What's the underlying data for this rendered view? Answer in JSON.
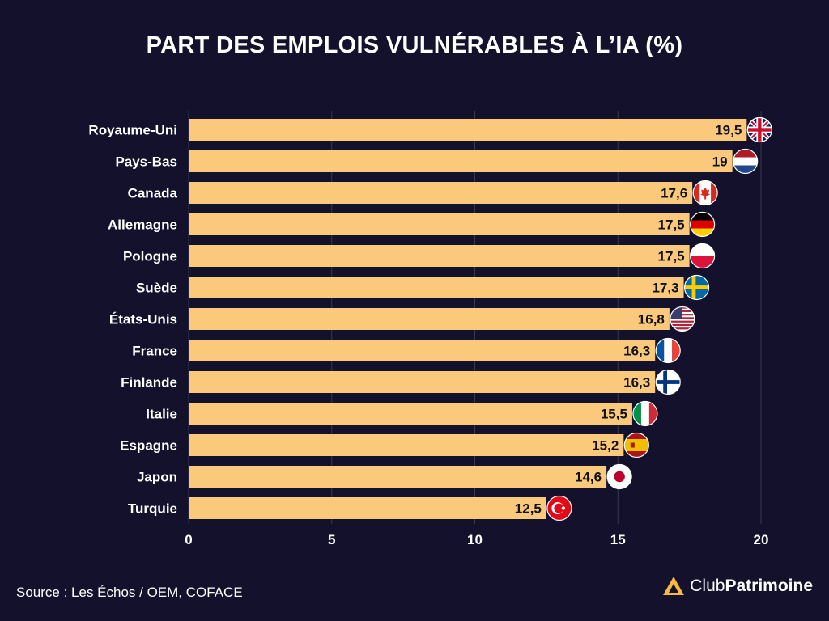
{
  "chart_data": {
    "type": "bar",
    "orientation": "horizontal",
    "title": "PART DES EMPLOIS VULNÉRABLES À L’IA (%)",
    "categories": [
      "Royaume-Uni",
      "Pays-Bas",
      "Canada",
      "Allemagne",
      "Pologne",
      "Suède",
      "États-Unis",
      "France",
      "Finlande",
      "Italie",
      "Espagne",
      "Japon",
      "Turquie"
    ],
    "values": [
      19.5,
      19,
      17.6,
      17.5,
      17.5,
      17.3,
      16.8,
      16.3,
      16.3,
      15.5,
      15.2,
      14.6,
      12.5
    ],
    "value_labels": [
      "19,5",
      "19",
      "17,6",
      "17,5",
      "17,5",
      "17,3",
      "16,8",
      "16,3",
      "16,3",
      "15,5",
      "15,2",
      "14,6",
      "12,5"
    ],
    "flags": [
      "uk-flag-icon",
      "netherlands-flag-icon",
      "canada-flag-icon",
      "germany-flag-icon",
      "poland-flag-icon",
      "sweden-flag-icon",
      "usa-flag-icon",
      "france-flag-icon",
      "finland-flag-icon",
      "italy-flag-icon",
      "spain-flag-icon",
      "japan-flag-icon",
      "turkey-flag-icon"
    ],
    "xlim": [
      0,
      20
    ],
    "xticks": [
      0,
      5,
      10,
      15,
      20
    ],
    "xtick_labels": [
      "0",
      "5",
      "10",
      "15",
      "20"
    ],
    "grid": true,
    "bar_color": "#fbc97c",
    "background_color": "#13112b"
  },
  "source": "Source : Les Échos / OEM, COFACE",
  "brand": {
    "part1": "Club",
    "part2": "Patrimoine"
  }
}
